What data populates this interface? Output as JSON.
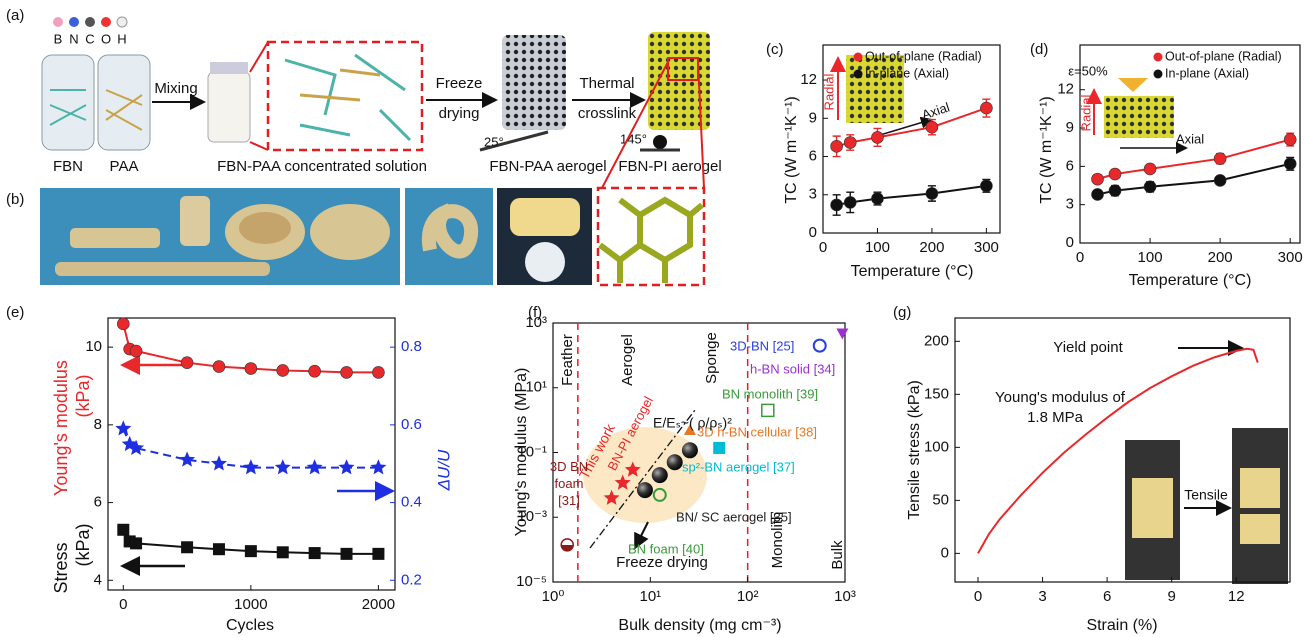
{
  "schematic": {
    "panel_labels": [
      "(a)",
      "(b)"
    ],
    "elements": [
      "B",
      "N",
      "C",
      "O",
      "H"
    ],
    "labels": [
      "FBN",
      "PAA",
      "Mixing",
      "FBN-PAA concentrated solution",
      "Freeze",
      "drying",
      "25°",
      "FBN-PAA aerogel",
      "Thermal",
      "crosslink",
      "145°",
      "FBN-PI aerogel"
    ]
  },
  "chart_data": [
    {
      "type": "line",
      "panel_label": "(c)",
      "x_label": "Temperature (°C)",
      "y_label": "TC (W m⁻¹K⁻¹)",
      "x": [
        25,
        50,
        100,
        200,
        300
      ],
      "series": [
        {
          "name": "Out-of-plane (Radial)",
          "color": "#e8282a",
          "marker": "circle",
          "values": [
            6.8,
            7.1,
            7.5,
            8.3,
            9.8
          ],
          "errors": [
            0.8,
            0.6,
            0.7,
            0.6,
            0.7
          ]
        },
        {
          "name": "In-plane (Axial)",
          "color": "#111111",
          "marker": "circle",
          "values": [
            2.2,
            2.4,
            2.7,
            3.1,
            3.7
          ],
          "errors": [
            0.8,
            0.8,
            0.5,
            0.6,
            0.5
          ]
        }
      ],
      "xlim": [
        0,
        325
      ],
      "ylim": [
        0,
        14.75
      ],
      "xticks": [
        0,
        100,
        200,
        300
      ],
      "yticks": [
        0,
        3,
        6,
        9,
        12
      ],
      "legend": "upper right",
      "annotations": [
        "Radial",
        "Axial"
      ]
    },
    {
      "type": "line",
      "panel_label": "(d)",
      "x_label": "Temperature (°C)",
      "y_label": "TC (W m⁻¹K⁻¹)",
      "x": [
        25,
        50,
        100,
        200,
        300
      ],
      "series": [
        {
          "name": "Out-of-plane (Radial)",
          "color": "#e8282a",
          "marker": "circle",
          "values": [
            5.0,
            5.4,
            5.8,
            6.6,
            8.1
          ],
          "errors": [
            0.3,
            0.3,
            0.3,
            0.4,
            0.5
          ]
        },
        {
          "name": "In-plane (Axial)",
          "color": "#111111",
          "marker": "circle",
          "values": [
            3.8,
            4.1,
            4.4,
            4.9,
            6.2
          ],
          "errors": [
            0.3,
            0.4,
            0.4,
            0.3,
            0.5
          ]
        }
      ],
      "xlim": [
        0,
        314
      ],
      "ylim": [
        0,
        15.5
      ],
      "xticks": [
        0,
        100,
        200,
        300
      ],
      "yticks": [
        0,
        3,
        6,
        9,
        12
      ],
      "legend": "upper right",
      "annotations": [
        "ε=50%",
        "Radial",
        "Axial"
      ]
    },
    {
      "type": "line",
      "panel_label": "(e)",
      "x_label": "Cycles",
      "y_labels": [
        {
          "text": "Stress",
          "color": "#111111"
        },
        {
          "text": "Young's modulus",
          "color": "#e8282a"
        },
        {
          "text": "(kPa)",
          "color": "#111111"
        },
        {
          "text": "(kPa)",
          "color": "#e8282a"
        }
      ],
      "y2_label": "ΔU/U",
      "y2_color": "#1d2fe0",
      "x": [
        0,
        50,
        100,
        500,
        750,
        1000,
        1250,
        1500,
        1750,
        2000
      ],
      "series": [
        {
          "color": "#e8282a",
          "marker": "circle",
          "values": [
            10.6,
            9.95,
            9.9,
            9.6,
            9.5,
            9.45,
            9.4,
            9.38,
            9.35,
            9.35
          ]
        },
        {
          "color": "#1d2fe0",
          "marker": "star",
          "line_style": "dashed",
          "axis": "y2",
          "values": [
            0.59,
            0.55,
            0.54,
            0.51,
            0.5,
            0.49,
            0.49,
            0.49,
            0.49,
            0.49
          ]
        },
        {
          "color": "#111111",
          "marker": "square",
          "values": [
            5.3,
            5.0,
            4.95,
            4.85,
            4.8,
            4.75,
            4.72,
            4.7,
            4.68,
            4.68
          ]
        }
      ],
      "xlim": [
        -120,
        2130
      ],
      "ylim": [
        3.75,
        10.75
      ],
      "y2lim": [
        0.175,
        0.875
      ],
      "xticks": [
        0,
        1000,
        2000
      ],
      "yticks": [
        4,
        6,
        8,
        10
      ],
      "y2ticks": [
        0.2,
        0.4,
        0.6,
        0.8
      ]
    },
    {
      "type": "scatter",
      "panel_label": "(f)",
      "x_label": "Bulk density (mg cm⁻³)",
      "y_label": "Young's modulus (MPa)",
      "x_scale": "log",
      "y_scale": "log",
      "xlim": [
        1,
        1000
      ],
      "ylim": [
        1e-05,
        1000
      ],
      "xticks": [
        {
          "value": 1,
          "label": "10⁰"
        },
        {
          "value": 10,
          "label": "10¹"
        },
        {
          "value": 100,
          "label": "10²"
        },
        {
          "value": 1000,
          "label": "10³"
        }
      ],
      "yticks": [
        {
          "value": 1e-05,
          "label": "10⁻⁵"
        },
        {
          "value": 0.001,
          "label": "10⁻³"
        },
        {
          "value": 0.1,
          "label": "10⁻¹"
        },
        {
          "value": 10,
          "label": "10¹"
        },
        {
          "value": 1000,
          "label": "10³"
        }
      ],
      "vlines": [
        1.8,
        100
      ],
      "series": [
        {
          "name": "3D BN foam [31]",
          "color": "#8b1a1a",
          "marker": "half-circle",
          "x": [
            1.4
          ],
          "values": [
            0.00014
          ]
        },
        {
          "name": "BN-PI aerogel",
          "color": "#e8282a",
          "marker": "star",
          "x": [
            4.0,
            5.2,
            6.6
          ],
          "values": [
            0.0039,
            0.0115,
            0.029
          ]
        },
        {
          "name": "BN/ SC aerogel [35]",
          "color": "#222222",
          "marker": "sphere",
          "x": [
            8.8,
            12.5,
            17.8,
            25.5
          ],
          "values": [
            0.0069,
            0.02,
            0.05,
            0.117
          ]
        },
        {
          "name": "BN foam [40]",
          "color": "#3a9a3a",
          "marker": "ring",
          "x": [
            12.5
          ],
          "values": [
            0.0049
          ]
        },
        {
          "name": "3D h-BN cellular [38]",
          "color": "#e87722",
          "marker": "triangle",
          "x": [
            25.5
          ],
          "values": [
            0.49
          ]
        },
        {
          "name": "sp²-BN aerogel [37]",
          "color": "#00bcd4",
          "marker": "square",
          "x": [
            51
          ],
          "values": [
            0.138
          ]
        },
        {
          "name": "BN monolith [39]",
          "color": "#3a9a3a",
          "marker": "open-square",
          "x": [
            161
          ],
          "values": [
            2.0
          ]
        },
        {
          "name": "3D-BN [25]",
          "color": "#2a3fe0",
          "marker": "ring",
          "x": [
            550
          ],
          "values": [
            200
          ]
        },
        {
          "name": "h-BN solid [34]",
          "color": "#9b30d0",
          "marker": "triangle-down",
          "x": [
            940
          ],
          "values": [
            480
          ]
        }
      ],
      "annotations": [
        "Feather",
        "Aerogel",
        "Sponge",
        "Monolith",
        "Bulk",
        "E/Eₛ~( ρ/ρₛ)²",
        "Freeze drying",
        "This work"
      ]
    },
    {
      "type": "line",
      "panel_label": "(g)",
      "x_label": "Strain (%)",
      "y_label": "Tensile stress (kPa)",
      "x": [
        0,
        0.5,
        1,
        2,
        3,
        4,
        5,
        6,
        7,
        8,
        9,
        10,
        11,
        12,
        12.5,
        12.8,
        13
      ],
      "series": [
        {
          "color": "#e8282a",
          "values": [
            0,
            18,
            32,
            55,
            76,
            95,
            112,
            128,
            143,
            156,
            167,
            177,
            185,
            191,
            193,
            192,
            180
          ]
        }
      ],
      "xlim": [
        -1.07,
        14.5
      ],
      "ylim": [
        -27,
        222
      ],
      "xticks": [
        0,
        3,
        6,
        9,
        12
      ],
      "yticks": [
        0,
        50,
        100,
        150,
        200
      ],
      "annotations": [
        "Yield point",
        "Young's modulus of",
        "1.8 MPa",
        "Tensile"
      ]
    }
  ]
}
